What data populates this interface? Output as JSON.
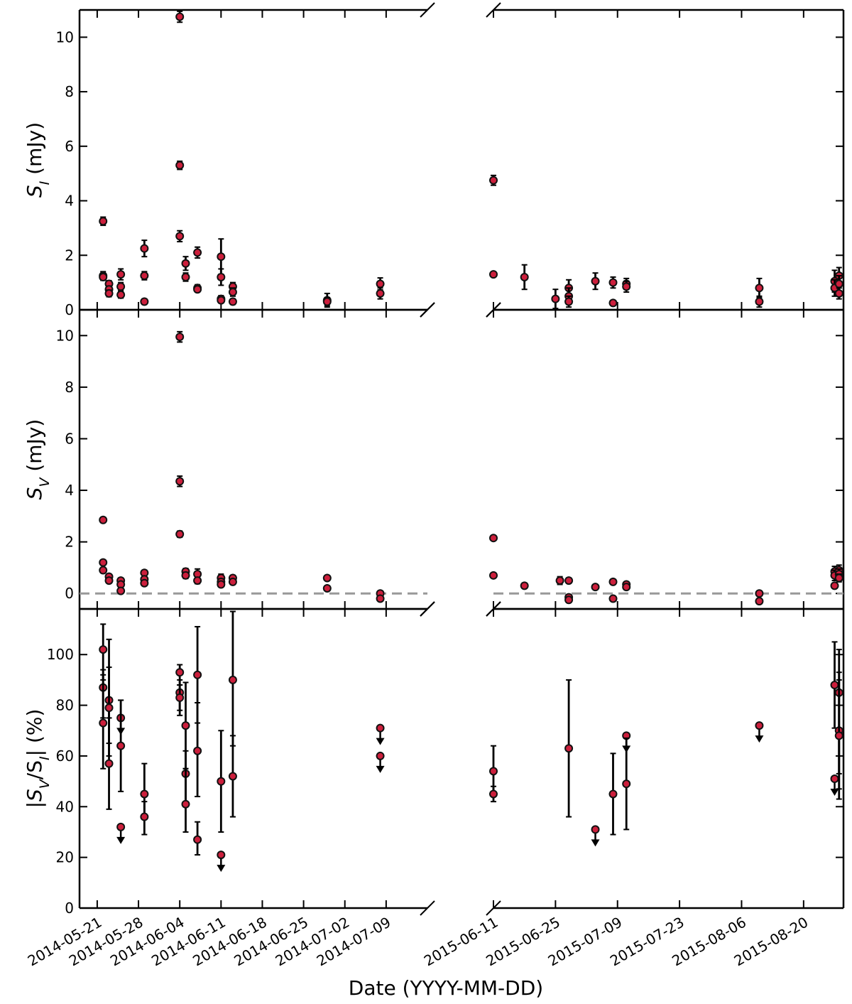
{
  "figure": {
    "xlabel": "Date (YYYY-MM-DD)",
    "colors": {
      "marker_fill": "#cc1f3c",
      "marker_edge": "#111111",
      "errorbar": "#000000",
      "zero_line": "#999999",
      "axes": "#000000"
    }
  },
  "chart_data": [
    {
      "type": "scatter",
      "panel": "top",
      "ylabel": "S_I (mJy)",
      "ylim": [
        0,
        11
      ],
      "yticks": [
        0,
        2,
        4,
        6,
        8,
        10
      ],
      "x_axis_type": "date",
      "broken_x_axis": true,
      "segments": [
        {
          "xlim": [
            "2014-05-18",
            "2014-07-16"
          ],
          "ticks": [
            "2014-05-21",
            "2014-05-28",
            "2014-06-04",
            "2014-06-11",
            "2014-06-18",
            "2014-06-25",
            "2014-07-02",
            "2014-07-09"
          ],
          "points": [
            {
              "x": "2014-05-22",
              "y": 3.25,
              "err": 0.15
            },
            {
              "x": "2014-05-22",
              "y": 1.25,
              "err": 0.15
            },
            {
              "x": "2014-05-22",
              "y": 1.2,
              "err": 0.12
            },
            {
              "x": "2014-05-23",
              "y": 0.95,
              "err": 0.12
            },
            {
              "x": "2014-05-23",
              "y": 0.75,
              "err": 0.12
            },
            {
              "x": "2014-05-23",
              "y": 0.6,
              "err": 0.12
            },
            {
              "x": "2014-05-25",
              "y": 1.3,
              "err": 0.2
            },
            {
              "x": "2014-05-25",
              "y": 0.85,
              "err": 0.15
            },
            {
              "x": "2014-05-25",
              "y": 0.55,
              "err": 0.12
            },
            {
              "x": "2014-05-29",
              "y": 2.25,
              "err": 0.3
            },
            {
              "x": "2014-05-29",
              "y": 1.25,
              "err": 0.15
            },
            {
              "x": "2014-05-29",
              "y": 0.3,
              "err": 0.1
            },
            {
              "x": "2014-06-04",
              "y": 10.75,
              "err": 0.2
            },
            {
              "x": "2014-06-04",
              "y": 5.3,
              "err": 0.15
            },
            {
              "x": "2014-06-04",
              "y": 2.7,
              "err": 0.2
            },
            {
              "x": "2014-06-05",
              "y": 1.7,
              "err": 0.25
            },
            {
              "x": "2014-06-05",
              "y": 1.2,
              "err": 0.15
            },
            {
              "x": "2014-06-07",
              "y": 2.1,
              "err": 0.2
            },
            {
              "x": "2014-06-07",
              "y": 0.8,
              "err": 0.12
            },
            {
              "x": "2014-06-07",
              "y": 0.75,
              "err": 0.1
            },
            {
              "x": "2014-06-11",
              "y": 1.95,
              "err": 0.65
            },
            {
              "x": "2014-06-11",
              "y": 1.2,
              "err": 0.3
            },
            {
              "x": "2014-06-11",
              "y": 0.4,
              "err": 0.12
            },
            {
              "x": "2014-06-11",
              "y": 0.35,
              "err": 0.1
            },
            {
              "x": "2014-06-13",
              "y": 0.85,
              "err": 0.15
            },
            {
              "x": "2014-06-13",
              "y": 0.65,
              "err": 0.15
            },
            {
              "x": "2014-06-13",
              "y": 0.3,
              "err": 0.1
            },
            {
              "x": "2014-06-29",
              "y": 0.35,
              "err": 0.25
            },
            {
              "x": "2014-06-29",
              "y": 0.3,
              "err": 0.15
            },
            {
              "x": "2014-07-08",
              "y": 0.95,
              "err": 0.22
            },
            {
              "x": "2014-07-08",
              "y": 0.6,
              "err": 0.2
            }
          ]
        },
        {
          "xlim": [
            "2015-06-11",
            "2015-08-29"
          ],
          "ticks": [
            "2015-06-11",
            "2015-06-25",
            "2015-07-09",
            "2015-07-23",
            "2015-08-06",
            "2015-08-20"
          ],
          "points": [
            {
              "x": "2015-06-11",
              "y": 4.75,
              "err": 0.18
            },
            {
              "x": "2015-06-11",
              "y": 1.3,
              "err": 0.08
            },
            {
              "x": "2015-06-18",
              "y": 1.2,
              "err": 0.45
            },
            {
              "x": "2015-06-25",
              "y": 0.4,
              "err": 0.35
            },
            {
              "x": "2015-06-28",
              "y": 0.8,
              "err": 0.3
            },
            {
              "x": "2015-06-28",
              "y": 0.5,
              "err": 0.3
            },
            {
              "x": "2015-06-28",
              "y": 0.3,
              "err": 0.2
            },
            {
              "x": "2015-07-04",
              "y": 1.05,
              "err": 0.3
            },
            {
              "x": "2015-07-08",
              "y": 1.0,
              "err": 0.2
            },
            {
              "x": "2015-07-08",
              "y": 0.25,
              "err": 0.08
            },
            {
              "x": "2015-07-11",
              "y": 0.95,
              "err": 0.2
            },
            {
              "x": "2015-07-11",
              "y": 0.85,
              "err": 0.2
            },
            {
              "x": "2015-08-10",
              "y": 0.8,
              "err": 0.35
            },
            {
              "x": "2015-08-10",
              "y": 0.3,
              "err": 0.2
            },
            {
              "x": "2015-08-27",
              "y": 1.05,
              "err": 0.4
            },
            {
              "x": "2015-08-27",
              "y": 0.8,
              "err": 0.3
            },
            {
              "x": "2015-08-28",
              "y": 1.25,
              "err": 0.3
            },
            {
              "x": "2015-08-28",
              "y": 0.95,
              "err": 0.3
            },
            {
              "x": "2015-08-28",
              "y": 0.6,
              "err": 0.2
            }
          ]
        }
      ]
    },
    {
      "type": "scatter",
      "panel": "middle",
      "ylabel": "S_V (mJy)",
      "ylim": [
        -0.6,
        11
      ],
      "yticks": [
        0,
        2,
        4,
        6,
        8,
        10
      ],
      "zero_line": true,
      "x_axis_type": "date",
      "broken_x_axis": true,
      "segments": [
        {
          "points": [
            {
              "x": "2014-05-22",
              "y": 2.85,
              "err": 0.1
            },
            {
              "x": "2014-05-22",
              "y": 1.2,
              "err": 0.1
            },
            {
              "x": "2014-05-22",
              "y": 0.9,
              "err": 0.1
            },
            {
              "x": "2014-05-23",
              "y": 0.65,
              "err": 0.1
            },
            {
              "x": "2014-05-23",
              "y": 0.5,
              "err": 0.1
            },
            {
              "x": "2014-05-25",
              "y": 0.5,
              "err": 0.1
            },
            {
              "x": "2014-05-25",
              "y": 0.35,
              "err": 0.1
            },
            {
              "x": "2014-05-25",
              "y": 0.1,
              "err": 0.1
            },
            {
              "x": "2014-05-29",
              "y": 0.8,
              "err": 0.1
            },
            {
              "x": "2014-05-29",
              "y": 0.55,
              "err": 0.1
            },
            {
              "x": "2014-05-29",
              "y": 0.4,
              "err": 0.1
            },
            {
              "x": "2014-06-04",
              "y": 9.95,
              "err": 0.2
            },
            {
              "x": "2014-06-04",
              "y": 4.35,
              "err": 0.2
            },
            {
              "x": "2014-06-04",
              "y": 2.3,
              "err": 0.12
            },
            {
              "x": "2014-06-05",
              "y": 0.85,
              "err": 0.12
            },
            {
              "x": "2014-06-05",
              "y": 0.7,
              "err": 0.12
            },
            {
              "x": "2014-06-07",
              "y": 0.75,
              "err": 0.2
            },
            {
              "x": "2014-06-07",
              "y": 0.5,
              "err": 0.12
            },
            {
              "x": "2014-06-11",
              "y": 0.6,
              "err": 0.15
            },
            {
              "x": "2014-06-11",
              "y": 0.45,
              "err": 0.12
            },
            {
              "x": "2014-06-11",
              "y": 0.35,
              "err": 0.1
            },
            {
              "x": "2014-06-13",
              "y": 0.6,
              "err": 0.1
            },
            {
              "x": "2014-06-13",
              "y": 0.45,
              "err": 0.1
            },
            {
              "x": "2014-06-29",
              "y": 0.6,
              "err": 0.08
            },
            {
              "x": "2014-06-29",
              "y": 0.2,
              "err": 0.08
            },
            {
              "x": "2014-07-08",
              "y": 0.0,
              "err": 0.1
            },
            {
              "x": "2014-07-08",
              "y": -0.2,
              "err": 0.1
            }
          ]
        },
        {
          "points": [
            {
              "x": "2015-06-11",
              "y": 2.15,
              "err": 0.08
            },
            {
              "x": "2015-06-11",
              "y": 0.7,
              "err": 0.06
            },
            {
              "x": "2015-06-18",
              "y": 0.3,
              "err": 0.1
            },
            {
              "x": "2015-06-26",
              "y": 0.5,
              "err": 0.15
            },
            {
              "x": "2015-06-28",
              "y": 0.5,
              "err": 0.1
            },
            {
              "x": "2015-06-28",
              "y": -0.15,
              "err": 0.1
            },
            {
              "x": "2015-06-28",
              "y": -0.25,
              "err": 0.1
            },
            {
              "x": "2015-07-04",
              "y": 0.25,
              "err": 0.08
            },
            {
              "x": "2015-07-08",
              "y": 0.45,
              "err": 0.1
            },
            {
              "x": "2015-07-08",
              "y": -0.2,
              "err": 0.1
            },
            {
              "x": "2015-07-11",
              "y": 0.35,
              "err": 0.1
            },
            {
              "x": "2015-07-11",
              "y": 0.25,
              "err": 0.1
            },
            {
              "x": "2015-08-10",
              "y": 0.0,
              "err": 0.1
            },
            {
              "x": "2015-08-10",
              "y": -0.3,
              "err": 0.1
            },
            {
              "x": "2015-08-27",
              "y": 0.85,
              "err": 0.2
            },
            {
              "x": "2015-08-27",
              "y": 0.7,
              "err": 0.2
            },
            {
              "x": "2015-08-27",
              "y": 0.3,
              "err": 0.1
            },
            {
              "x": "2015-08-28",
              "y": 0.9,
              "err": 0.2
            },
            {
              "x": "2015-08-28",
              "y": 0.75,
              "err": 0.2
            },
            {
              "x": "2015-08-28",
              "y": 0.6,
              "err": 0.15
            }
          ]
        }
      ]
    },
    {
      "type": "scatter",
      "panel": "bottom",
      "ylabel": "|S_V/S_I| (%)",
      "ylim": [
        0,
        118
      ],
      "yticks": [
        0,
        20,
        40,
        60,
        80,
        100
      ],
      "x_axis_type": "date",
      "broken_x_axis": true,
      "segments": [
        {
          "points": [
            {
              "x": "2014-05-22",
              "y": 102,
              "lo": 90,
              "hi": 112
            },
            {
              "x": "2014-05-22",
              "y": 87,
              "lo": 75,
              "hi": 94
            },
            {
              "x": "2014-05-22",
              "y": 73,
              "lo": 55,
              "hi": 92
            },
            {
              "x": "2014-05-23",
              "y": 82,
              "lo": 65,
              "hi": 106
            },
            {
              "x": "2014-05-23",
              "y": 79,
              "lo": 60,
              "hi": 95
            },
            {
              "x": "2014-05-23",
              "y": 57,
              "lo": 39,
              "hi": 75
            },
            {
              "x": "2014-05-25",
              "y": 75,
              "upper_limit": true,
              "hi": 82
            },
            {
              "x": "2014-05-25",
              "y": 64,
              "lo": 46,
              "hi": 82
            },
            {
              "x": "2014-05-25",
              "y": 32,
              "upper_limit": true
            },
            {
              "x": "2014-05-29",
              "y": 45,
              "lo": 35,
              "hi": 57
            },
            {
              "x": "2014-05-29",
              "y": 36,
              "lo": 29,
              "hi": 42
            },
            {
              "x": "2014-06-04",
              "y": 93,
              "lo": 88,
              "hi": 96
            },
            {
              "x": "2014-06-04",
              "y": 85,
              "lo": 78,
              "hi": 90
            },
            {
              "x": "2014-06-04",
              "y": 83,
              "lo": 76,
              "hi": 88
            },
            {
              "x": "2014-06-05",
              "y": 72,
              "lo": 55,
              "hi": 89
            },
            {
              "x": "2014-06-05",
              "y": 53,
              "lo": 40,
              "hi": 62
            },
            {
              "x": "2014-06-05",
              "y": 41,
              "lo": 30,
              "hi": 55
            },
            {
              "x": "2014-06-07",
              "y": 92,
              "lo": 73,
              "hi": 111
            },
            {
              "x": "2014-06-07",
              "y": 62,
              "lo": 44,
              "hi": 81
            },
            {
              "x": "2014-06-07",
              "y": 27,
              "lo": 21,
              "hi": 34
            },
            {
              "x": "2014-06-11",
              "y": 50,
              "lo": 30,
              "hi": 70
            },
            {
              "x": "2014-06-11",
              "y": 21,
              "upper_limit": true
            },
            {
              "x": "2014-06-13",
              "y": 90,
              "lo": 64,
              "hi": 117
            },
            {
              "x": "2014-06-13",
              "y": 52,
              "lo": 36,
              "hi": 68
            },
            {
              "x": "2014-07-08",
              "y": 71,
              "upper_limit": true
            },
            {
              "x": "2014-07-08",
              "y": 60,
              "upper_limit": true
            }
          ]
        },
        {
          "points": [
            {
              "x": "2015-06-11",
              "y": 54,
              "lo": 44,
              "hi": 64
            },
            {
              "x": "2015-06-11",
              "y": 45,
              "lo": 42,
              "hi": 48
            },
            {
              "x": "2015-06-28",
              "y": 63,
              "lo": 36,
              "hi": 90
            },
            {
              "x": "2015-07-04",
              "y": 31,
              "upper_limit": true
            },
            {
              "x": "2015-07-08",
              "y": 45,
              "lo": 29,
              "hi": 61
            },
            {
              "x": "2015-07-11",
              "y": 68,
              "upper_limit": true
            },
            {
              "x": "2015-07-11",
              "y": 49,
              "lo": 31,
              "hi": 67
            },
            {
              "x": "2015-08-10",
              "y": 72,
              "upper_limit": true
            },
            {
              "x": "2015-08-27",
              "y": 88,
              "lo": 71,
              "hi": 105
            },
            {
              "x": "2015-08-27",
              "y": 51,
              "upper_limit": true
            },
            {
              "x": "2015-08-28",
              "y": 85,
              "lo": 53,
              "hi": 102
            },
            {
              "x": "2015-08-28",
              "y": 70,
              "lo": 47,
              "hi": 93
            },
            {
              "x": "2015-08-28",
              "y": 68,
              "lo": 43,
              "hi": 90
            }
          ]
        }
      ]
    }
  ]
}
